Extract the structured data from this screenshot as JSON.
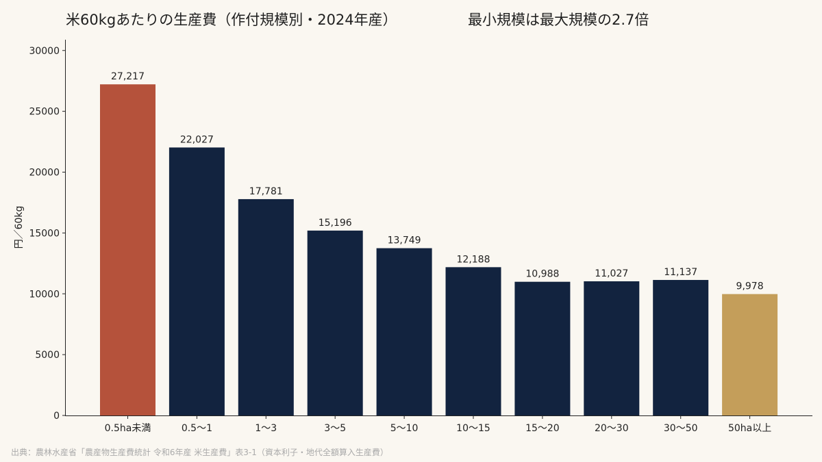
{
  "title": "米60kgあたりの生産費（作付規模別・2024年産）",
  "subtitle": "最小規模は最大規模の2.7倍",
  "source": "出典：農林水産省「農産物生産費統計 令和6年産 米生産費」表3-1（資本利子・地代全額算入生産費）",
  "colors": {
    "background": "#faf7f1",
    "default_bar": "#12233f",
    "min_size_bar": "#b5523b",
    "max_size_bar": "#c49e5a"
  },
  "chart_data": {
    "type": "bar",
    "ylabel": "円／60kg",
    "xlabel": "",
    "ylim": [
      0,
      31000
    ],
    "yticks": [
      "0",
      "5000",
      "10000",
      "15000",
      "20000",
      "25000",
      "30000"
    ],
    "grid": false,
    "categories": [
      "0.5ha未満",
      "0.5〜1",
      "1〜3",
      "3〜5",
      "5〜10",
      "10〜15",
      "15〜20",
      "20〜30",
      "30〜50",
      "50ha以上"
    ],
    "values": [
      27217,
      22027,
      17781,
      15196,
      13749,
      12188,
      10988,
      11027,
      11137,
      9978
    ],
    "value_labels": [
      "27,217",
      "22,027",
      "17,781",
      "15,196",
      "13,749",
      "12,188",
      "10,988",
      "11,027",
      "11,137",
      "9,978"
    ],
    "bar_colors": [
      "#b5523b",
      "#12233f",
      "#12233f",
      "#12233f",
      "#12233f",
      "#12233f",
      "#12233f",
      "#12233f",
      "#12233f",
      "#c49e5a"
    ]
  }
}
